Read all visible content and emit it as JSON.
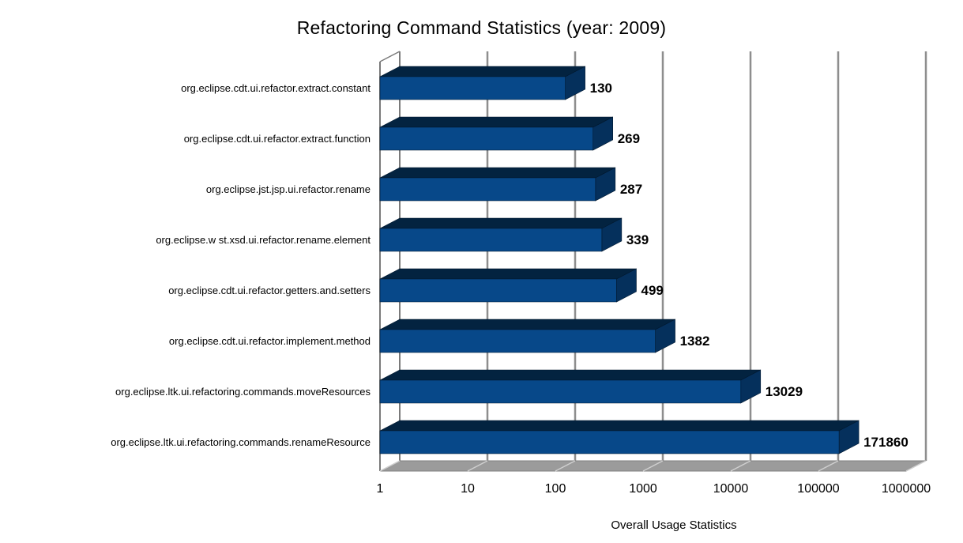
{
  "chart_data": {
    "type": "bar",
    "orientation": "horizontal",
    "title": "Refactoring Command Statistics (year: 2009)",
    "xlabel": "Overall Usage Statistics",
    "ylabel": "",
    "x_scale": "log10",
    "xlim": [
      1,
      1000000
    ],
    "x_ticks": [
      "1",
      "10",
      "100",
      "1000",
      "10000",
      "100000",
      "1000000"
    ],
    "grid": "vertical-decade-gridlines",
    "legend": "none",
    "style": "3d-bars",
    "categories": [
      "org.eclipse.cdt.ui.refactor.extract.constant",
      "org.eclipse.cdt.ui.refactor.extract.function",
      "org.eclipse.jst.jsp.ui.refactor.rename",
      "org.eclipse.w st.xsd.ui.refactor.rename.element",
      "org.eclipse.cdt.ui.refactor.getters.and.setters",
      "org.eclipse.cdt.ui.refactor.implement.method",
      "org.eclipse.ltk.ui.refactoring.commands.moveResources",
      "org.eclipse.ltk.ui.refactoring.commands.renameResource"
    ],
    "values": [
      130,
      269,
      287,
      339,
      499,
      1382,
      13029,
      171860
    ],
    "value_labels": [
      "130",
      "269",
      "287",
      "339",
      "499",
      "1382",
      "13029",
      "171860"
    ],
    "colors": {
      "bar_front": "#074889",
      "bar_top": "#032340",
      "bar_side": "#05305c",
      "bar_outline": "#02182e",
      "gridline": "#8e8e8e",
      "wall_line": "#7a7a7a",
      "floor_fill": "#9b9b9b",
      "floor_outline": "#818181",
      "floor_gridline": "#cfcfcf",
      "text": "#000000",
      "background": "#ffffff"
    }
  }
}
